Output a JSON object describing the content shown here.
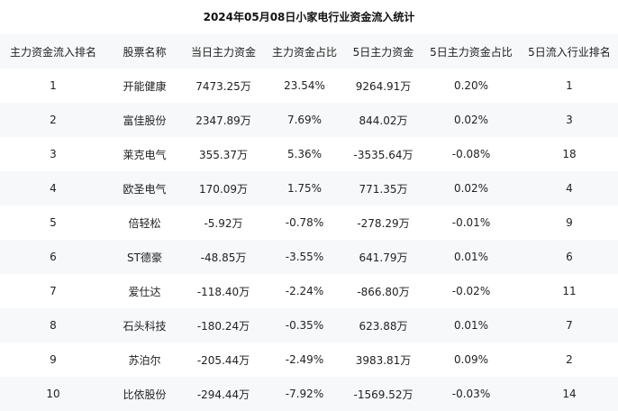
{
  "title": "2024年05月08日小家电行业资金流入统计",
  "headers": [
    "主力资金流入排名",
    "股票名称",
    "当日主力资金",
    "主力资金占比",
    "5日主力资金",
    "5日主力资金占比",
    "5日流入行业排名"
  ],
  "rows": [
    [
      "1",
      "开能健康",
      "7473.25万",
      "23.54%",
      "9264.91万",
      "0.20%",
      "1"
    ],
    [
      "2",
      "富佳股份",
      "2347.89万",
      "7.69%",
      "844.02万",
      "0.02%",
      "3"
    ],
    [
      "3",
      "莱克电气",
      "355.37万",
      "5.36%",
      "-3535.64万",
      "-0.08%",
      "18"
    ],
    [
      "4",
      "欧圣电气",
      "170.09万",
      "1.75%",
      "771.35万",
      "0.02%",
      "4"
    ],
    [
      "5",
      "倍轻松",
      "-5.92万",
      "-0.78%",
      "-278.29万",
      "-0.01%",
      "9"
    ],
    [
      "6",
      "ST德豪",
      "-48.85万",
      "-3.55%",
      "641.79万",
      "0.01%",
      "6"
    ],
    [
      "7",
      "爱仕达",
      "-118.40万",
      "-2.24%",
      "-866.80万",
      "-0.02%",
      "11"
    ],
    [
      "8",
      "石头科技",
      "-180.24万",
      "-0.35%",
      "623.88万",
      "0.01%",
      "7"
    ],
    [
      "9",
      "苏泊尔",
      "-205.44万",
      "-2.49%",
      "3983.81万",
      "0.09%",
      "2"
    ],
    [
      "10",
      "比依股份",
      "-294.44万",
      "-7.92%",
      "-1569.52万",
      "-0.03%",
      "14"
    ]
  ]
}
